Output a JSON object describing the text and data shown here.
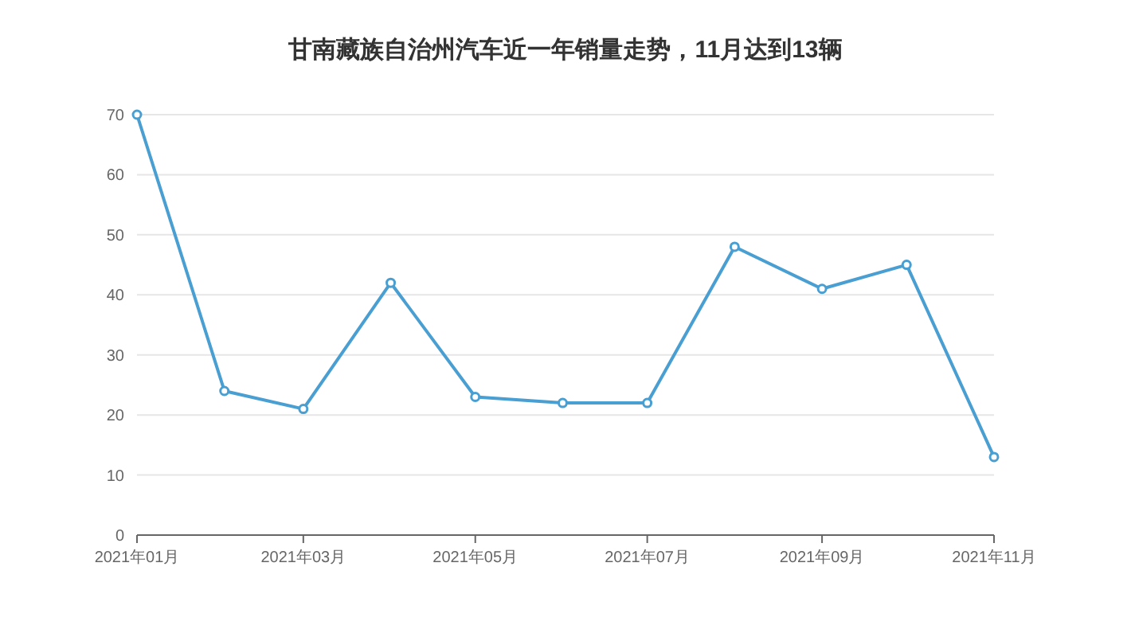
{
  "chart_data": {
    "type": "line",
    "title": "甘南藏族自治州汽车近一年销量走势，11月达到13辆",
    "x": [
      "2021-01",
      "2021-02",
      "2021-03",
      "2021-04",
      "2021-05",
      "2021-06",
      "2021-07",
      "2021-08",
      "2021-09",
      "2021-10",
      "2021-11"
    ],
    "series": [
      {
        "color": "#4a9fd2",
        "values": [
          70,
          24,
          21,
          42,
          23,
          22,
          22,
          48,
          41,
          45,
          13
        ]
      }
    ],
    "xlim": [
      "2021-01",
      "2021-11"
    ],
    "xticks": [
      {
        "value": "2021-01",
        "label": "2021年01月"
      },
      {
        "value": "2021-03",
        "label": "2021年03月"
      },
      {
        "value": "2021-05",
        "label": "2021年05月"
      },
      {
        "value": "2021-07",
        "label": "2021年07月"
      },
      {
        "value": "2021-09",
        "label": "2021年09月"
      },
      {
        "value": "2021-11",
        "label": "2021年11月"
      }
    ],
    "ylim": [
      0,
      70
    ],
    "yticks": [
      0,
      10,
      20,
      30,
      40,
      50,
      60,
      70
    ],
    "grid": "y",
    "marker": "circle",
    "line_style": "solid"
  }
}
